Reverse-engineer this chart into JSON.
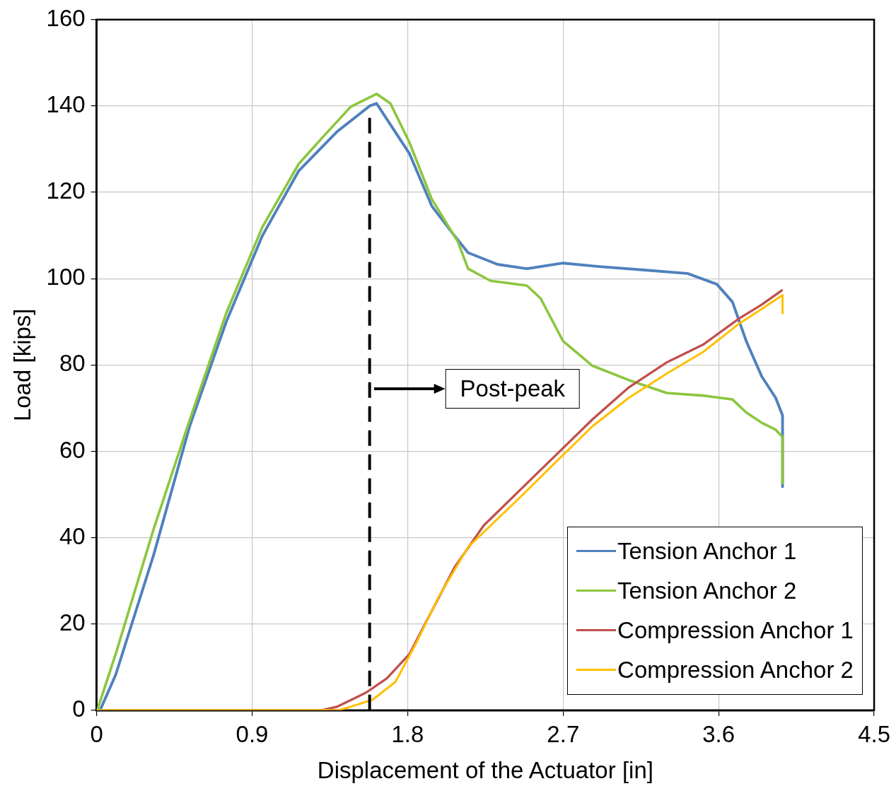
{
  "chart_data": {
    "type": "line",
    "xlabel": "Displacement of the Actuator [in]",
    "ylabel": "Load [kips]",
    "xlim": [
      0,
      4.5
    ],
    "xticks": [
      0,
      0.9,
      1.8,
      2.7,
      3.6,
      4.5
    ],
    "ylim": [
      0,
      160
    ],
    "yticks": [
      0,
      20,
      40,
      60,
      80,
      100,
      120,
      140,
      160
    ],
    "grid": true,
    "legend": "bottom right",
    "marker": "none",
    "line_style": "solid",
    "series": [
      {
        "name": "Tension Anchor 1",
        "color": "#4f81bd",
        "x": [
          0,
          0.02,
          0.11,
          0.33,
          0.54,
          0.75,
          0.96,
          1.17,
          1.39,
          1.58,
          1.62,
          1.7,
          1.81,
          1.94,
          2.07,
          2.15,
          2.32,
          2.49,
          2.7,
          2.91,
          3.17,
          3.42,
          3.59,
          3.68,
          3.76,
          3.85,
          3.93,
          3.97,
          3.97
        ],
        "values": [
          0,
          0,
          8.2,
          36,
          66,
          90,
          110,
          125,
          134,
          140,
          140.6,
          135.7,
          129,
          116.8,
          110,
          106,
          103.3,
          102.3,
          103.6,
          102.8,
          102,
          101.2,
          98.7,
          94.6,
          85.5,
          77.3,
          72.4,
          68.3,
          51.8
        ]
      },
      {
        "name": "Tension Anchor 2",
        "color": "#8cc63f",
        "x": [
          0,
          0.01,
          0.11,
          0.33,
          0.54,
          0.75,
          0.96,
          1.17,
          1.3,
          1.47,
          1.62,
          1.7,
          1.81,
          1.94,
          2.09,
          2.15,
          2.28,
          2.49,
          2.57,
          2.7,
          2.87,
          3.08,
          3.3,
          3.51,
          3.68,
          3.76,
          3.85,
          3.93,
          3.97,
          3.97
        ],
        "values": [
          0,
          0.8,
          13,
          42,
          67.4,
          92,
          112,
          126.6,
          132.4,
          139.8,
          142.8,
          140.6,
          131.6,
          118.4,
          108.6,
          102.3,
          99.5,
          98.4,
          95.4,
          85.5,
          79.8,
          76.5,
          73.5,
          72.9,
          72,
          69,
          66.6,
          65,
          63.3,
          52.6
        ]
      },
      {
        "name": "Compression Anchor 1",
        "color": "#c0504d",
        "x": [
          1.3,
          1.39,
          1.56,
          1.68,
          1.81,
          1.94,
          2.07,
          2.24,
          2.45,
          2.66,
          2.87,
          3.08,
          3.3,
          3.51,
          3.72,
          3.85,
          3.97
        ],
        "values": [
          0,
          0.8,
          4.1,
          7.4,
          13,
          23,
          33,
          42.8,
          51,
          59.2,
          67.4,
          74.8,
          80.6,
          84.7,
          90.8,
          94,
          97.4
        ]
      },
      {
        "name": "Compression Anchor 2",
        "color": "#ffc000",
        "x": [
          0,
          1.4,
          1.47,
          1.6,
          1.73,
          1.85,
          1.98,
          2.15,
          2.45,
          2.66,
          2.87,
          3.08,
          3.3,
          3.51,
          3.72,
          3.85,
          3.97,
          3.97
        ],
        "values": [
          0,
          0,
          0.8,
          2.5,
          6.6,
          15.6,
          26.3,
          37.8,
          49.3,
          57.6,
          65.8,
          72.4,
          78,
          83,
          89.6,
          93,
          96.2,
          92
        ]
      },
      {
        "type": "line",
        "color": "#000000",
        "line_style": "dashed",
        "x": [
          1.58,
          1.58
        ],
        "values": [
          0,
          138
        ]
      }
    ],
    "annotations": [
      "Post-peak"
    ]
  }
}
